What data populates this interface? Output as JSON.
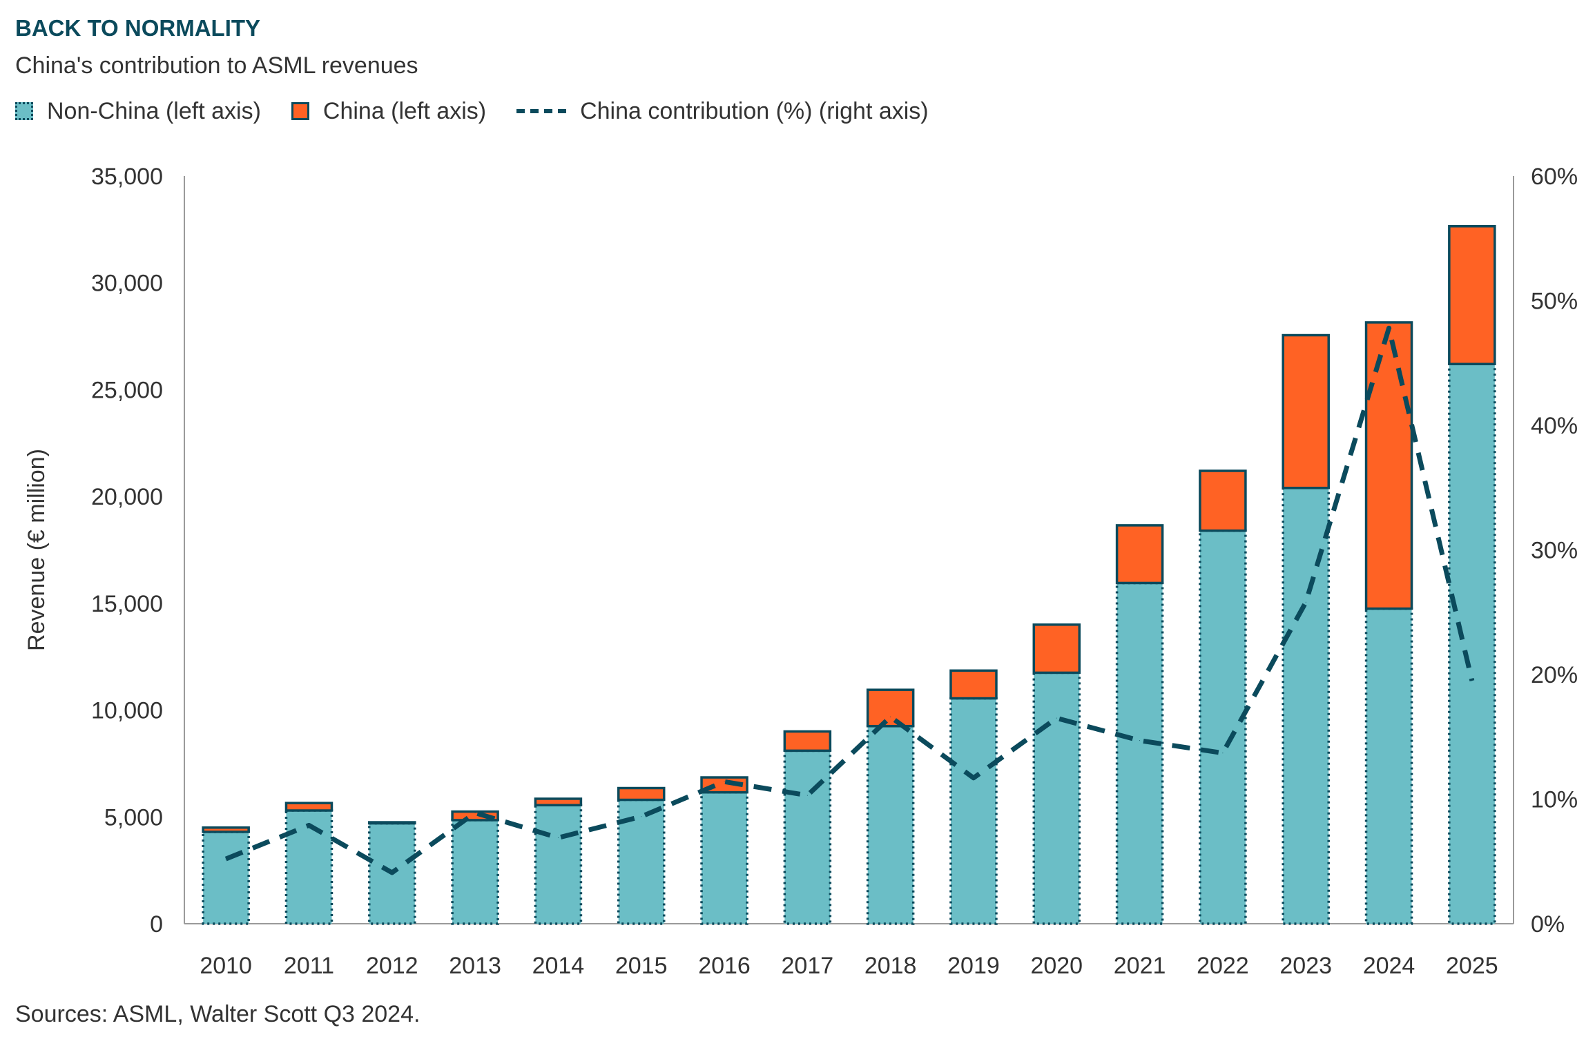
{
  "chart_data": {
    "type": "bar",
    "title": "BACK TO NORMALITY",
    "subtitle": "China's contribution to ASML revenues",
    "ylabel": "Revenue (€ million)",
    "ylim": [
      0,
      35000
    ],
    "y_ticks": [
      "0",
      "5,000",
      "10,000",
      "15,000",
      "20,000",
      "25,000",
      "30,000",
      "35,000"
    ],
    "y2lim": [
      0,
      60
    ],
    "y2_ticks": [
      "0%",
      "10%",
      "20%",
      "30%",
      "40%",
      "50%",
      "60%"
    ],
    "categories": [
      "2010",
      "2011",
      "2012",
      "2013",
      "2014",
      "2015",
      "2016",
      "2017",
      "2018",
      "2019",
      "2020",
      "2021",
      "2022",
      "2023",
      "2024",
      "2025"
    ],
    "series": [
      {
        "name": "Non-China (left axis)",
        "type": "bar",
        "stacked": true,
        "color": "#6bbec6",
        "values": [
          4300,
          5300,
          4700,
          4850,
          5550,
          5800,
          6150,
          8100,
          9250,
          10550,
          11750,
          15950,
          18400,
          20400,
          14750,
          26200
        ]
      },
      {
        "name": "China (left axis)",
        "type": "bar",
        "stacked": true,
        "color": "#ff6224",
        "values": [
          200,
          350,
          50,
          400,
          300,
          550,
          700,
          900,
          1700,
          1300,
          2250,
          2700,
          2800,
          7150,
          13400,
          6450
        ]
      },
      {
        "name": "China contribution (%) (right axis)",
        "type": "line",
        "axis": "right",
        "color": "#0b4a5c",
        "values": [
          5.2,
          7.9,
          4.1,
          8.9,
          6.9,
          8.6,
          11.4,
          10.3,
          16.6,
          11.7,
          16.5,
          14.7,
          13.7,
          25.8,
          47.8,
          19.5
        ]
      }
    ],
    "legend_position": "top-left",
    "grid": false
  },
  "source": "Sources: ASML, Walter Scott Q3 2024."
}
